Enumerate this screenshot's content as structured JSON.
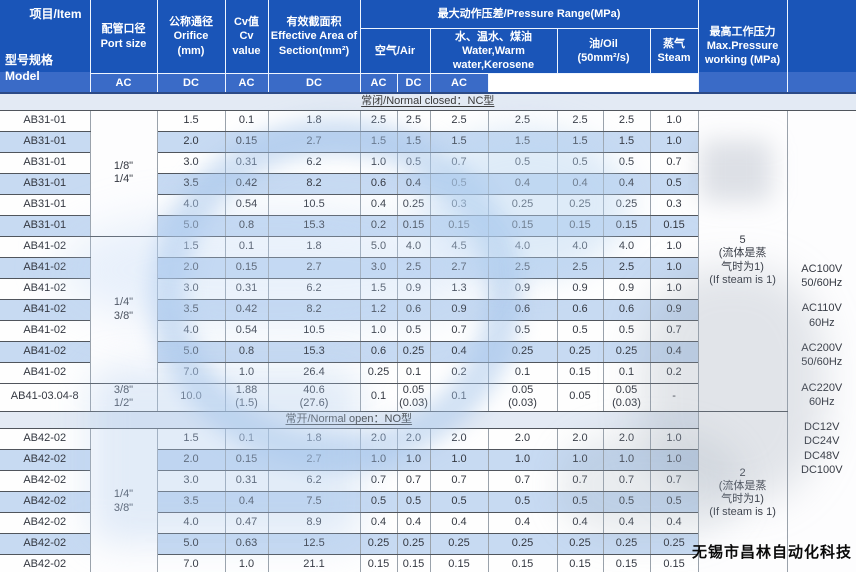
{
  "header": {
    "corner_top": "项目/Item",
    "corner_bottom": "型号规格\nModel",
    "port": "配管口径\nPort size",
    "orifice": "公称通径\nOrifice\n(mm)",
    "cv": "Cv值\nCv\nvalue",
    "area": "有效截面积\nEffective Area of\nSection(mm²)",
    "pressure_group": "最大动作压差/Pressure Range(MPa)",
    "air": "空气/Air",
    "water": "水、温水、煤油\nWater,Warm\nwater,Kerosene",
    "oil": "油/Oil\n(50mm²/s)",
    "steam": "蒸气\nSteam",
    "max_pressure": "最高工作压力\nMax.Pressure\nworking (MPa)",
    "ac": "AC",
    "dc": "DC"
  },
  "voltages": [
    "AC100V\n50/60Hz",
    "AC110V\n60Hz",
    "AC200V\n50/60Hz",
    "AC220V\n60Hz",
    "DC12V\nDC24V\nDC48V\nDC100V"
  ],
  "sections": [
    {
      "label": "常闭/Normal closed：NC型",
      "max_pressure_note": "5\n(流体是蒸\n气时为1)\n(If steam is 1)",
      "rows": [
        {
          "model": "AB31-01",
          "port": "1/8\"\n1/4\"",
          "port_span": 6,
          "orifice": "1.5",
          "cv": "0.1",
          "area": "1.8",
          "air_ac": "2.5",
          "air_dc": "2.5",
          "water_ac": "2.5",
          "water_dc": "2.5",
          "oil_ac": "2.5",
          "oil_dc": "2.5",
          "steam_ac": "1.0"
        },
        {
          "model": "AB31-01",
          "orifice": "2.0",
          "cv": "0.15",
          "area": "2.7",
          "air_ac": "1.5",
          "air_dc": "1.5",
          "water_ac": "1.5",
          "water_dc": "1.5",
          "oil_ac": "1.5",
          "oil_dc": "1.5",
          "steam_ac": "1.0"
        },
        {
          "model": "AB31-01",
          "orifice": "3.0",
          "cv": "0.31",
          "area": "6.2",
          "air_ac": "1.0",
          "air_dc": "0.5",
          "water_ac": "0.7",
          "water_dc": "0.5",
          "oil_ac": "0.5",
          "oil_dc": "0.5",
          "steam_ac": "0.7"
        },
        {
          "model": "AB31-01",
          "orifice": "3.5",
          "cv": "0.42",
          "area": "8.2",
          "air_ac": "0.6",
          "air_dc": "0.4",
          "water_ac": "0.5",
          "water_dc": "0.4",
          "oil_ac": "0.4",
          "oil_dc": "0.4",
          "steam_ac": "0.5"
        },
        {
          "model": "AB31-01",
          "orifice": "4.0",
          "cv": "0.54",
          "area": "10.5",
          "air_ac": "0.4",
          "air_dc": "0.25",
          "water_ac": "0.3",
          "water_dc": "0.25",
          "oil_ac": "0.25",
          "oil_dc": "0.25",
          "steam_ac": "0.3"
        },
        {
          "model": "AB31-01",
          "orifice": "5.0",
          "cv": "0.8",
          "area": "15.3",
          "air_ac": "0.2",
          "air_dc": "0.15",
          "water_ac": "0.15",
          "water_dc": "0.15",
          "oil_ac": "0.15",
          "oil_dc": "0.15",
          "steam_ac": "0.15"
        },
        {
          "model": "AB41-02",
          "port": "1/4\"\n3/8\"",
          "port_span": 7,
          "orifice": "1.5",
          "cv": "0.1",
          "area": "1.8",
          "air_ac": "5.0",
          "air_dc": "4.0",
          "water_ac": "4.5",
          "water_dc": "4.0",
          "oil_ac": "4.0",
          "oil_dc": "4.0",
          "steam_ac": "1.0"
        },
        {
          "model": "AB41-02",
          "orifice": "2.0",
          "cv": "0.15",
          "area": "2.7",
          "air_ac": "3.0",
          "air_dc": "2.5",
          "water_ac": "2.7",
          "water_dc": "2.5",
          "oil_ac": "2.5",
          "oil_dc": "2.5",
          "steam_ac": "1.0"
        },
        {
          "model": "AB41-02",
          "orifice": "3.0",
          "cv": "0.31",
          "area": "6.2",
          "air_ac": "1.5",
          "air_dc": "0.9",
          "water_ac": "1.3",
          "water_dc": "0.9",
          "oil_ac": "0.9",
          "oil_dc": "0.9",
          "steam_ac": "1.0"
        },
        {
          "model": "AB41-02",
          "orifice": "3.5",
          "cv": "0.42",
          "area": "8.2",
          "air_ac": "1.2",
          "air_dc": "0.6",
          "water_ac": "0.9",
          "water_dc": "0.6",
          "oil_ac": "0.6",
          "oil_dc": "0.6",
          "steam_ac": "0.9"
        },
        {
          "model": "AB41-02",
          "orifice": "4.0",
          "cv": "0.54",
          "area": "10.5",
          "air_ac": "1.0",
          "air_dc": "0.5",
          "water_ac": "0.7",
          "water_dc": "0.5",
          "oil_ac": "0.5",
          "oil_dc": "0.5",
          "steam_ac": "0.7"
        },
        {
          "model": "AB41-02",
          "orifice": "5.0",
          "cv": "0.8",
          "area": "15.3",
          "air_ac": "0.6",
          "air_dc": "0.25",
          "water_ac": "0.4",
          "water_dc": "0.25",
          "oil_ac": "0.25",
          "oil_dc": "0.25",
          "steam_ac": "0.4"
        },
        {
          "model": "AB41-02",
          "orifice": "7.0",
          "cv": "1.0",
          "area": "26.4",
          "air_ac": "0.25",
          "air_dc": "0.1",
          "water_ac": "0.2",
          "water_dc": "0.1",
          "oil_ac": "0.15",
          "oil_dc": "0.1",
          "steam_ac": "0.2"
        },
        {
          "model": "AB41-03.04-8",
          "port": "3/8\"\n1/2\"",
          "port_span": 1,
          "tall": true,
          "orifice": "10.0",
          "cv": "1.88\n(1.5)",
          "area": "40.6\n(27.6)",
          "air_ac": "0.1",
          "air_dc": "0.05\n(0.03)",
          "water_ac": "0.1",
          "water_dc": "0.05\n(0.03)",
          "oil_ac": "0.05",
          "oil_dc": "0.05\n(0.03)",
          "steam_ac": "-"
        }
      ]
    },
    {
      "label": "常开/Normal open：NO型",
      "max_pressure_note": "2\n(流体是蒸\n气时为1)\n(If steam is 1)",
      "rows": [
        {
          "model": "AB42-02",
          "port": "1/4\"\n3/8\"",
          "port_span": 7,
          "orifice": "1.5",
          "cv": "0.1",
          "area": "1.8",
          "air_ac": "2.0",
          "air_dc": "2.0",
          "water_ac": "2.0",
          "water_dc": "2.0",
          "oil_ac": "2.0",
          "oil_dc": "2.0",
          "steam_ac": "1.0"
        },
        {
          "model": "AB42-02",
          "orifice": "2.0",
          "cv": "0.15",
          "area": "2.7",
          "air_ac": "1.0",
          "air_dc": "1.0",
          "water_ac": "1.0",
          "water_dc": "1.0",
          "oil_ac": "1.0",
          "oil_dc": "1.0",
          "steam_ac": "1.0"
        },
        {
          "model": "AB42-02",
          "orifice": "3.0",
          "cv": "0.31",
          "area": "6.2",
          "air_ac": "0.7",
          "air_dc": "0.7",
          "water_ac": "0.7",
          "water_dc": "0.7",
          "oil_ac": "0.7",
          "oil_dc": "0.7",
          "steam_ac": "0.7"
        },
        {
          "model": "AB42-02",
          "orifice": "3.5",
          "cv": "0.4",
          "area": "7.5",
          "air_ac": "0.5",
          "air_dc": "0.5",
          "water_ac": "0.5",
          "water_dc": "0.5",
          "oil_ac": "0.5",
          "oil_dc": "0.5",
          "steam_ac": "0.5"
        },
        {
          "model": "AB42-02",
          "orifice": "4.0",
          "cv": "0.47",
          "area": "8.9",
          "air_ac": "0.4",
          "air_dc": "0.4",
          "water_ac": "0.4",
          "water_dc": "0.4",
          "oil_ac": "0.4",
          "oil_dc": "0.4",
          "steam_ac": "0.4"
        },
        {
          "model": "AB42-02",
          "orifice": "5.0",
          "cv": "0.63",
          "area": "12.5",
          "air_ac": "0.25",
          "air_dc": "0.25",
          "water_ac": "0.25",
          "water_dc": "0.25",
          "oil_ac": "0.25",
          "oil_dc": "0.25",
          "steam_ac": "0.25"
        },
        {
          "model": "AB42-02",
          "orifice": "7.0",
          "cv": "1.0",
          "area": "21.1",
          "air_ac": "0.15",
          "air_dc": "0.15",
          "water_ac": "0.15",
          "water_dc": "0.15",
          "oil_ac": "0.15",
          "oil_dc": "0.15",
          "steam_ac": "0.15"
        }
      ]
    }
  ],
  "brand_footer": "无锡市昌林自动化科技",
  "colors": {
    "header_blue": "#1a55b8",
    "header_blue_light": "#3a6bc7",
    "row_stripe": "#c7daf2",
    "section_band": "#e3eaf4",
    "watermark_blue": "#a5c6ec"
  }
}
